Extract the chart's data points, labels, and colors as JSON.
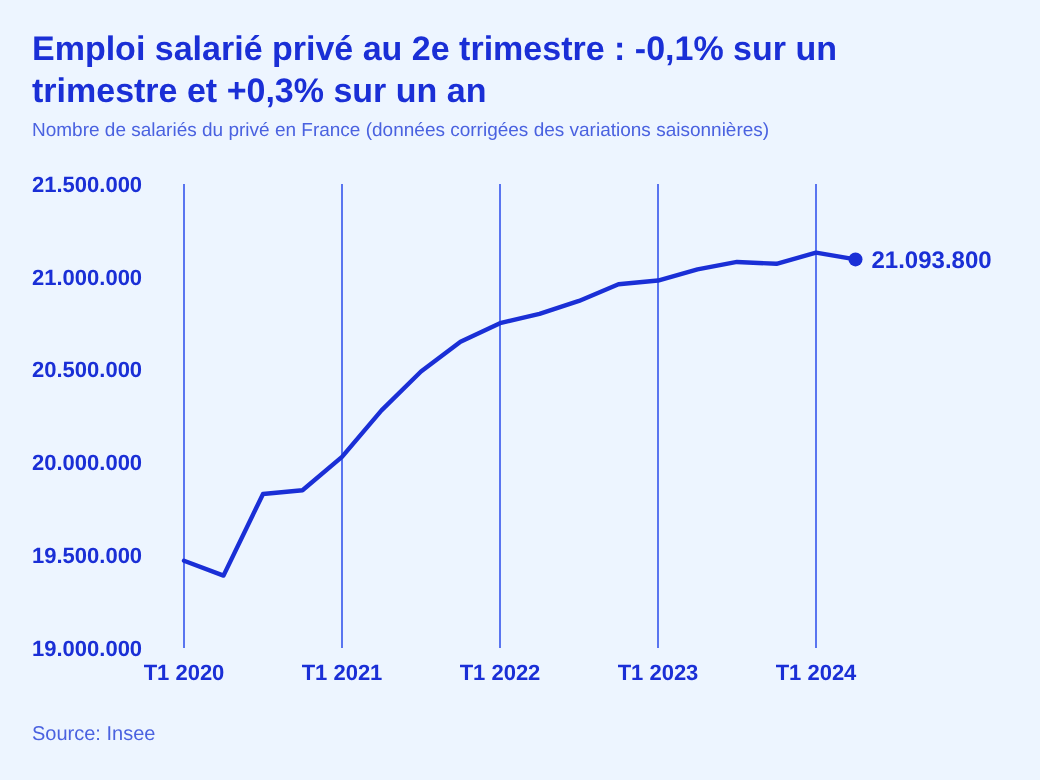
{
  "chart_data": {
    "type": "line",
    "title": "Emploi salarié privé au 2e trimestre : -0,1% sur un trimestre et +0,3% sur un an",
    "subtitle": "Nombre de salariés du privé en France (données corrigées des variations saisonnières)",
    "categories": [
      "T1 2020",
      null,
      null,
      null,
      "T1 2021",
      null,
      null,
      null,
      "T1 2022",
      null,
      null,
      null,
      "T1 2023",
      null,
      null,
      null,
      "T1 2024",
      null
    ],
    "series": [
      {
        "color": "#1a2fd6",
        "values": [
          19470000,
          19390000,
          19830000,
          19850000,
          20030000,
          20280000,
          20490000,
          20650000,
          20750000,
          20800000,
          20870000,
          20960000,
          20980000,
          21040000,
          21080000,
          21070000,
          21130000,
          21093800
        ],
        "value_labels": [
          null,
          null,
          null,
          null,
          null,
          null,
          null,
          null,
          null,
          null,
          null,
          null,
          null,
          null,
          null,
          null,
          null,
          "21.093.800"
        ]
      }
    ],
    "ylim": [
      19000000,
      21500000
    ],
    "yticks": [
      {
        "value": 19000000,
        "label": "19.000.000"
      },
      {
        "value": 19500000,
        "label": "19.500.000"
      },
      {
        "value": 20000000,
        "label": "20.000.000"
      },
      {
        "value": 20500000,
        "label": "20.500.000"
      },
      {
        "value": 21000000,
        "label": "21.000.000"
      },
      {
        "value": 21500000,
        "label": "21.500.000"
      }
    ],
    "grid": "x",
    "marker": "none",
    "line_style": "solid",
    "annotations": [
      "Source: Insee"
    ]
  }
}
